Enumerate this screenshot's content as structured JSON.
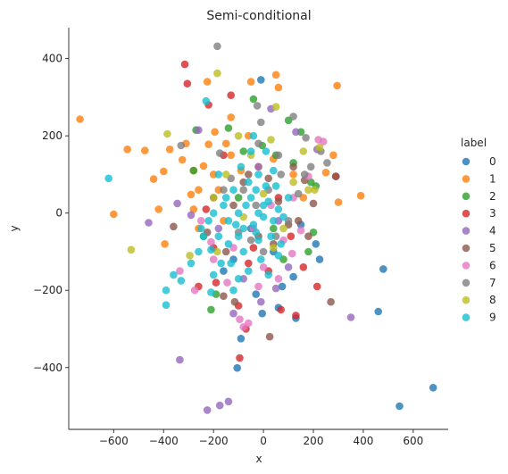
{
  "chart_data": {
    "type": "scatter",
    "title": "Semi-conditional",
    "xlabel": "x",
    "ylabel": "y",
    "xlim": [
      -780,
      740
    ],
    "ylim": [
      -560,
      480
    ],
    "xticks": [
      -600,
      -400,
      -200,
      0,
      200,
      400,
      600
    ],
    "yticks": [
      -400,
      -200,
      0,
      200,
      400
    ],
    "tick_labels_x": [
      "−600",
      "−400",
      "−200",
      "0",
      "200",
      "400",
      "600"
    ],
    "tick_labels_y": [
      "−400",
      "−200",
      "0",
      "200",
      "400"
    ],
    "grid": false,
    "legend": {
      "title": "label",
      "placement": "right"
    },
    "series": [
      {
        "name": "0",
        "color": "#1f77b4",
        "points": [
          [
            480,
            -145
          ],
          [
            460,
            -255
          ],
          [
            545,
            -500
          ],
          [
            680,
            -452
          ],
          [
            -90,
            -325
          ],
          [
            -105,
            -401
          ],
          [
            -10,
            345
          ],
          [
            210,
            -80
          ],
          [
            225,
            -120
          ],
          [
            130,
            -272
          ],
          [
            75,
            -190
          ],
          [
            -160,
            -150
          ],
          [
            -5,
            -260
          ],
          [
            40,
            -100
          ],
          [
            -50,
            -40
          ],
          [
            120,
            -165
          ],
          [
            150,
            -30
          ],
          [
            -120,
            -120
          ],
          [
            60,
            -245
          ],
          [
            -30,
            -210
          ]
        ]
      },
      {
        "name": "1",
        "color": "#ff7f0e",
        "points": [
          [
            -735,
            243
          ],
          [
            -600,
            -3
          ],
          [
            -545,
            165
          ],
          [
            -475,
            162
          ],
          [
            -440,
            88
          ],
          [
            -420,
            10
          ],
          [
            -400,
            108
          ],
          [
            -395,
            -80
          ],
          [
            -375,
            165
          ],
          [
            -325,
            138
          ],
          [
            -290,
            48
          ],
          [
            -280,
            110
          ],
          [
            -240,
            122
          ],
          [
            -220,
            178
          ],
          [
            -195,
            210
          ],
          [
            -225,
            340
          ],
          [
            -130,
            150
          ],
          [
            -50,
            340
          ],
          [
            50,
            358
          ],
          [
            60,
            325
          ],
          [
            295,
            330
          ],
          [
            300,
            28
          ],
          [
            390,
            45
          ],
          [
            280,
            150
          ],
          [
            250,
            105
          ],
          [
            -280,
            10
          ],
          [
            -260,
            -40
          ],
          [
            -130,
            248
          ],
          [
            -310,
            180
          ],
          [
            -150,
            180
          ],
          [
            -90,
            110
          ],
          [
            -180,
            60
          ],
          [
            -200,
            100
          ],
          [
            -60,
            200
          ],
          [
            40,
            140
          ],
          [
            120,
            100
          ],
          [
            160,
            40
          ],
          [
            -20,
            120
          ],
          [
            -260,
            60
          ],
          [
            -160,
            -20
          ]
        ]
      },
      {
        "name": "2",
        "color": "#2ca02c",
        "points": [
          [
            -280,
            110
          ],
          [
            -270,
            215
          ],
          [
            -210,
            -250
          ],
          [
            -140,
            220
          ],
          [
            -40,
            295
          ],
          [
            100,
            240
          ],
          [
            150,
            210
          ],
          [
            50,
            150
          ],
          [
            -5,
            175
          ],
          [
            190,
            80
          ],
          [
            200,
            -50
          ],
          [
            -190,
            -210
          ],
          [
            210,
            70
          ],
          [
            120,
            130
          ],
          [
            -100,
            40
          ],
          [
            40,
            -40
          ],
          [
            -240,
            -60
          ],
          [
            80,
            -120
          ],
          [
            180,
            -100
          ],
          [
            -80,
            160
          ]
        ]
      },
      {
        "name": "3",
        "color": "#d62728",
        "points": [
          [
            -315,
            385
          ],
          [
            -305,
            335
          ],
          [
            -220,
            280
          ],
          [
            -130,
            305
          ],
          [
            -260,
            -190
          ],
          [
            -190,
            -180
          ],
          [
            -100,
            -240
          ],
          [
            -95,
            -375
          ],
          [
            -70,
            -300
          ],
          [
            70,
            -250
          ],
          [
            215,
            -190
          ],
          [
            130,
            -265
          ],
          [
            -160,
            150
          ],
          [
            -200,
            -90
          ],
          [
            290,
            95
          ],
          [
            20,
            -150
          ],
          [
            -40,
            -90
          ],
          [
            110,
            -60
          ],
          [
            -230,
            10
          ],
          [
            60,
            40
          ],
          [
            -60,
            -130
          ],
          [
            160,
            -140
          ]
        ]
      },
      {
        "name": "4",
        "color": "#9467bd",
        "points": [
          [
            -460,
            -25
          ],
          [
            -345,
            25
          ],
          [
            -335,
            -380
          ],
          [
            -290,
            -5
          ],
          [
            -260,
            215
          ],
          [
            -225,
            -510
          ],
          [
            -175,
            -498
          ],
          [
            -140,
            -488
          ],
          [
            30,
            270
          ],
          [
            130,
            210
          ],
          [
            215,
            165
          ],
          [
            350,
            -270
          ],
          [
            -80,
            -170
          ],
          [
            -120,
            -260
          ],
          [
            -10,
            -230
          ],
          [
            50,
            -195
          ],
          [
            -20,
            120
          ],
          [
            100,
            -140
          ],
          [
            -180,
            -40
          ],
          [
            60,
            -20
          ]
        ]
      },
      {
        "name": "5",
        "color": "#8c564b",
        "points": [
          [
            -360,
            -35
          ],
          [
            -225,
            -50
          ],
          [
            -160,
            -215
          ],
          [
            -115,
            -230
          ],
          [
            25,
            -320
          ],
          [
            40,
            -80
          ],
          [
            120,
            120
          ],
          [
            165,
            85
          ],
          [
            200,
            25
          ],
          [
            270,
            -230
          ],
          [
            290,
            95
          ],
          [
            -80,
            80
          ],
          [
            -20,
            -60
          ],
          [
            60,
            30
          ],
          [
            140,
            -20
          ],
          [
            -120,
            20
          ],
          [
            -60,
            100
          ],
          [
            20,
            90
          ],
          [
            100,
            -30
          ],
          [
            -200,
            40
          ],
          [
            180,
            -60
          ],
          [
            -150,
            -100
          ]
        ]
      },
      {
        "name": "6",
        "color": "#e377c2",
        "points": [
          [
            -335,
            -150
          ],
          [
            -275,
            -200
          ],
          [
            -210,
            -75
          ],
          [
            -145,
            -180
          ],
          [
            -95,
            -275
          ],
          [
            -80,
            -295
          ],
          [
            -60,
            -285
          ],
          [
            -20,
            -190
          ],
          [
            60,
            -170
          ],
          [
            115,
            -105
          ],
          [
            150,
            -45
          ],
          [
            180,
            95
          ],
          [
            220,
            190
          ],
          [
            240,
            185
          ],
          [
            -200,
            -120
          ],
          [
            -120,
            -90
          ],
          [
            0,
            -140
          ],
          [
            80,
            -70
          ],
          [
            -40,
            -40
          ],
          [
            30,
            20
          ],
          [
            -250,
            -20
          ],
          [
            120,
            40
          ]
        ]
      },
      {
        "name": "7",
        "color": "#7f7f7f",
        "points": [
          [
            -185,
            432
          ],
          [
            -25,
            278
          ],
          [
            -10,
            235
          ],
          [
            -330,
            175
          ],
          [
            -175,
            155
          ],
          [
            120,
            250
          ],
          [
            170,
            195
          ],
          [
            165,
            100
          ],
          [
            230,
            160
          ],
          [
            255,
            130
          ],
          [
            -130,
            90
          ],
          [
            -80,
            60
          ],
          [
            -30,
            20
          ],
          [
            20,
            60
          ],
          [
            70,
            100
          ],
          [
            100,
            -20
          ],
          [
            -50,
            -70
          ],
          [
            0,
            -100
          ],
          [
            -100,
            -50
          ],
          [
            50,
            -60
          ],
          [
            140,
            50
          ],
          [
            -160,
            60
          ],
          [
            190,
            120
          ],
          [
            60,
            150
          ],
          [
            -20,
            180
          ]
        ]
      },
      {
        "name": "8",
        "color": "#bcbd22",
        "points": [
          [
            -185,
            362
          ],
          [
            -385,
            205
          ],
          [
            -530,
            -95
          ],
          [
            -295,
            -110
          ],
          [
            -185,
            -100
          ],
          [
            30,
            190
          ],
          [
            50,
            275
          ],
          [
            160,
            160
          ],
          [
            180,
            60
          ],
          [
            205,
            60
          ],
          [
            225,
            170
          ],
          [
            -100,
            200
          ],
          [
            -150,
            100
          ],
          [
            -50,
            150
          ],
          [
            0,
            50
          ],
          [
            80,
            -40
          ],
          [
            -80,
            -10
          ],
          [
            40,
            -90
          ],
          [
            120,
            80
          ],
          [
            -200,
            40
          ]
        ]
      },
      {
        "name": "9",
        "color": "#17becf",
        "points": [
          [
            -620,
            90
          ],
          [
            -390,
            -200
          ],
          [
            -390,
            -238
          ],
          [
            -360,
            -160
          ],
          [
            -330,
            -175
          ],
          [
            -290,
            -130
          ],
          [
            -210,
            -205
          ],
          [
            -170,
            -130
          ],
          [
            -210,
            -95
          ],
          [
            -240,
            -60
          ],
          [
            -140,
            -20
          ],
          [
            -100,
            -60
          ],
          [
            -80,
            -100
          ],
          [
            -60,
            -150
          ],
          [
            -40,
            -30
          ],
          [
            -20,
            -70
          ],
          [
            0,
            -10
          ],
          [
            20,
            30
          ],
          [
            40,
            -20
          ],
          [
            60,
            10
          ],
          [
            -50,
            40
          ],
          [
            -120,
            60
          ],
          [
            -160,
            20
          ],
          [
            -220,
            -20
          ],
          [
            -180,
            -60
          ],
          [
            -100,
            0
          ],
          [
            -60,
            80
          ],
          [
            -20,
            100
          ],
          [
            10,
            160
          ],
          [
            -30,
            60
          ],
          [
            30,
            -60
          ],
          [
            50,
            70
          ],
          [
            80,
            -10
          ],
          [
            100,
            40
          ],
          [
            -90,
            120
          ],
          [
            -140,
            -80
          ],
          [
            -200,
            0
          ],
          [
            -10,
            -120
          ],
          [
            20,
            -160
          ],
          [
            -70,
            20
          ],
          [
            -110,
            -30
          ],
          [
            -150,
            40
          ],
          [
            -30,
            -50
          ],
          [
            0,
            20
          ],
          [
            40,
            110
          ],
          [
            -50,
            160
          ],
          [
            -230,
            290
          ],
          [
            -100,
            -170
          ],
          [
            -260,
            -100
          ],
          [
            -120,
            -200
          ],
          [
            70,
            -80
          ],
          [
            -40,
            200
          ],
          [
            -180,
            100
          ],
          [
            -80,
            -40
          ],
          [
            -20,
            0
          ],
          [
            10,
            70
          ],
          [
            60,
            -110
          ],
          [
            -130,
            -130
          ],
          [
            -200,
            -160
          ],
          [
            -250,
            -40
          ]
        ]
      }
    ]
  }
}
